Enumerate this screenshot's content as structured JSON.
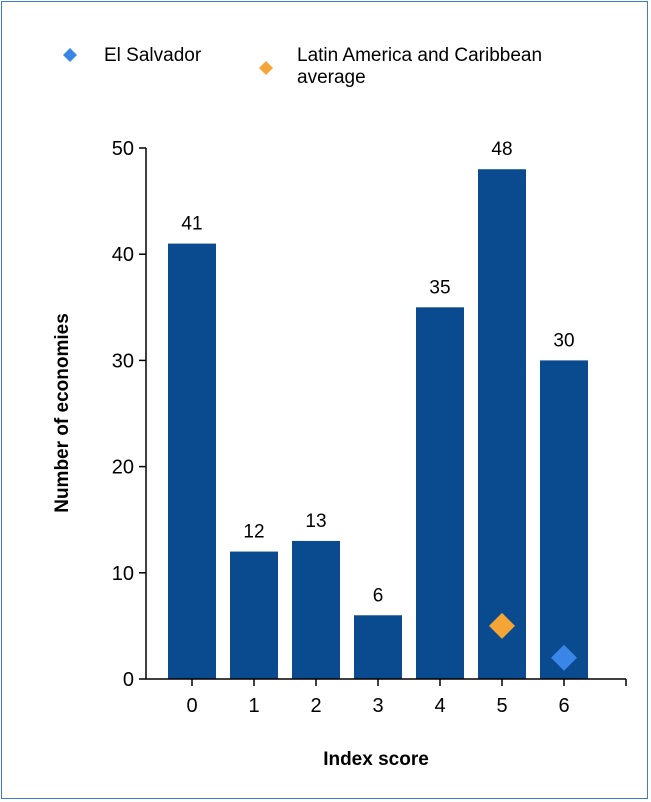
{
  "chart_data": {
    "type": "bar",
    "categories": [
      "0",
      "1",
      "2",
      "3",
      "4",
      "5",
      "6"
    ],
    "values": [
      41,
      12,
      13,
      6,
      35,
      48,
      30
    ],
    "data_labels": [
      "41",
      "12",
      "13",
      "6",
      "35",
      "48",
      "30"
    ],
    "xlabel": "Index score",
    "ylabel": "Number of economies",
    "ylim": [
      0,
      50
    ],
    "yticks": [
      "0",
      "10",
      "20",
      "30",
      "40",
      "50"
    ],
    "bar_color": "#0a4a8f",
    "legend": {
      "placement": "top",
      "entries": [
        {
          "label": "El Salvador",
          "color": "#3a86e6",
          "marker": "diamond"
        },
        {
          "label_line1": "Latin America and Caribbean",
          "label_line2": "average",
          "color": "#f5a536",
          "marker": "diamond"
        }
      ]
    },
    "markers": [
      {
        "name": "El Salvador",
        "x": "6",
        "y": 2,
        "color": "#3a86e6"
      },
      {
        "name": "Latin America and Caribbean average",
        "x": "5",
        "y": 5,
        "color": "#f5a536"
      }
    ]
  }
}
